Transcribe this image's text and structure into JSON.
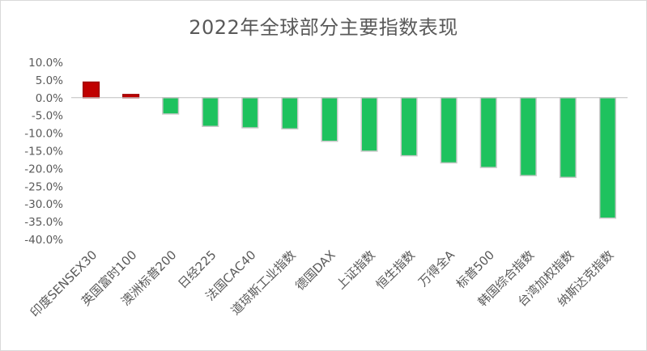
{
  "chart_data": {
    "type": "bar",
    "title": "2022年全球部分主要指数表现",
    "categories": [
      "印度SENSEX30",
      "英国富时100",
      "澳洲标普200",
      "日经225",
      "法国CAC40",
      "道琼斯工业指数",
      "德国DAX",
      "上证指数",
      "恒生指数",
      "万得全A",
      "标普500",
      "韩国综合指数",
      "台湾加权指数",
      "纳斯达克指数"
    ],
    "values": [
      4.4,
      0.9,
      -4.6,
      -8.1,
      -8.5,
      -8.8,
      -12.3,
      -15.1,
      -16.4,
      -18.4,
      -19.7,
      -22.0,
      -22.5,
      -34.0
    ],
    "ylim": [
      -40,
      10
    ],
    "ytick_step": 5,
    "ytick_labels": [
      "10.0%",
      "5.0%",
      "0.0%",
      "-5.0%",
      "-10.0%",
      "-15.0%",
      "-20.0%",
      "-25.0%",
      "-30.0%",
      "-35.0%",
      "-40.0%"
    ],
    "colors": {
      "positive": "#c00000",
      "negative": "#1ec25e",
      "negative_border": "#c9c9c9",
      "axis": "#bfbfbf",
      "text": "#595959"
    },
    "grid": false,
    "legend": "none"
  }
}
